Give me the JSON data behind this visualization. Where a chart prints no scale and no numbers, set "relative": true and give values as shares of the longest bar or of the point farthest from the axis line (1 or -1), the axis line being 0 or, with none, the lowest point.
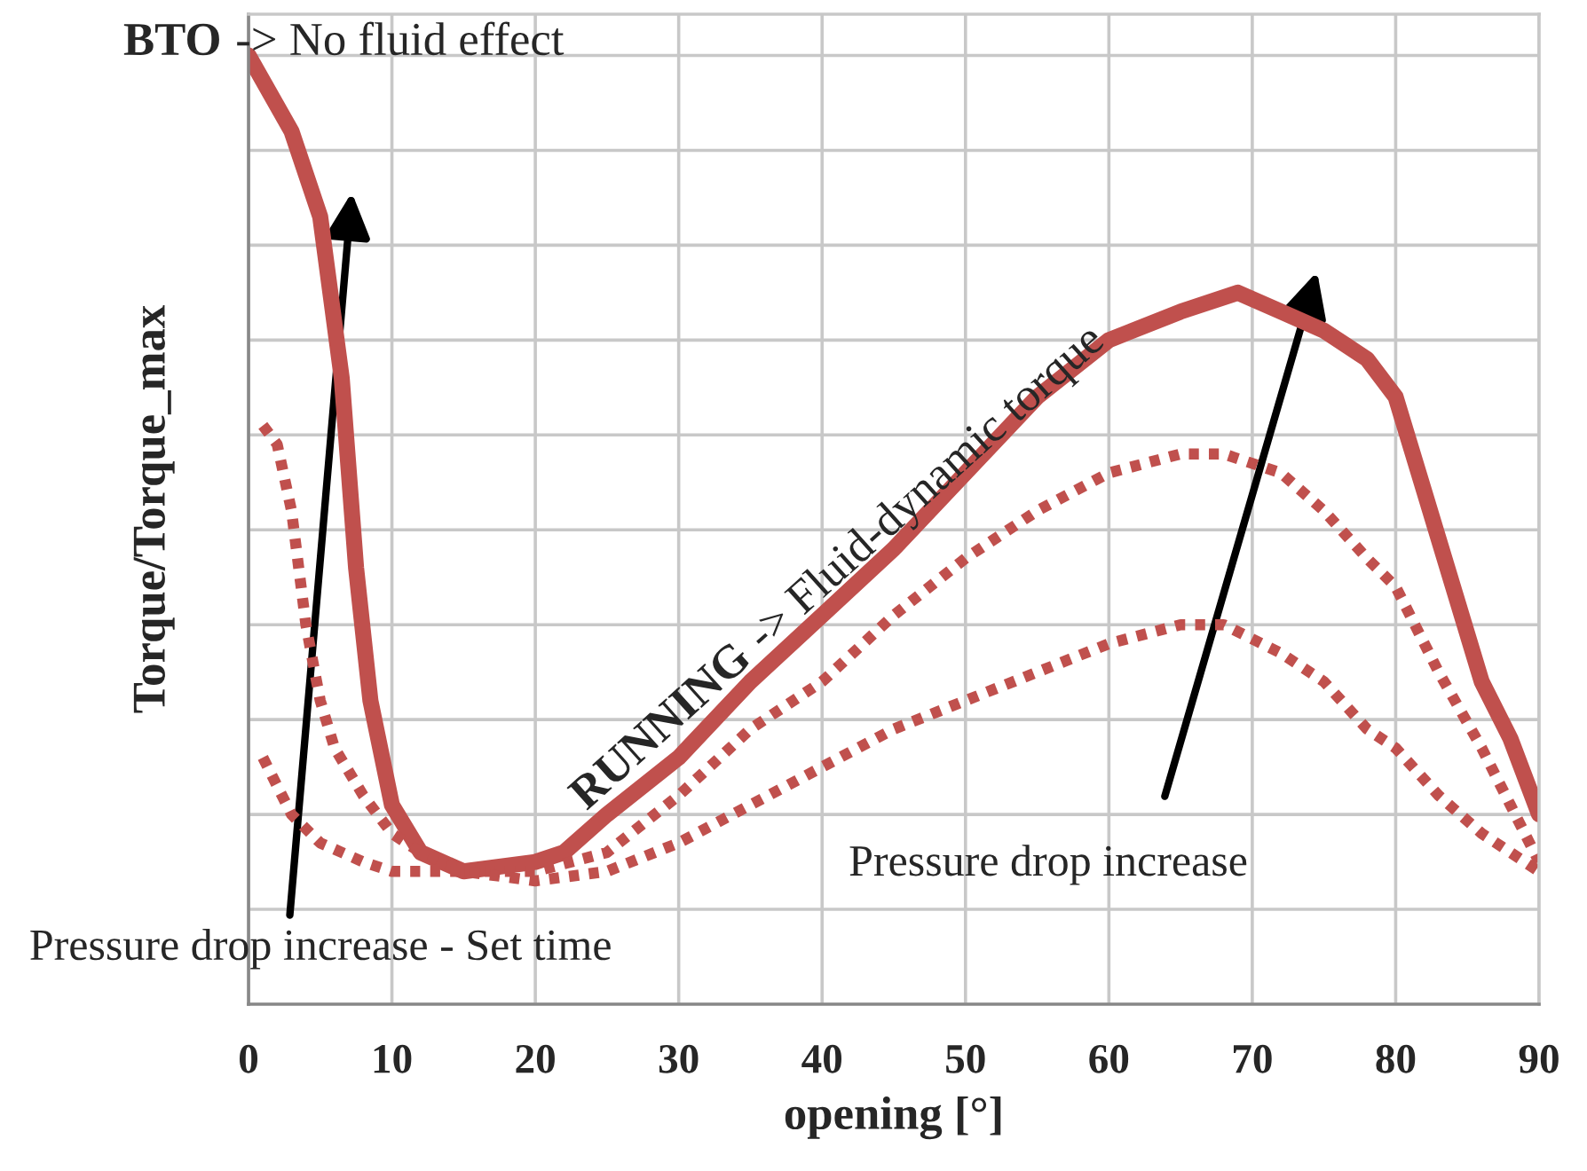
{
  "chart_data": {
    "type": "line",
    "relative": true,
    "xlabel": "opening [°]",
    "ylabel": "Torque/Torque_max",
    "xlim": [
      0,
      90
    ],
    "xticks": [
      0,
      10,
      20,
      30,
      40,
      50,
      60,
      70,
      80,
      90
    ],
    "grid": true,
    "legend": false,
    "annotations": [
      "BTO -> No fluid effect",
      "RUNNING -> Fluid-dynamic torque",
      "Pressure drop increase - Set time",
      "Pressure drop increase"
    ],
    "series": [
      {
        "color": "#c0504d",
        "line_style": "solid",
        "x": [
          0,
          3,
          5,
          6.5,
          7.5,
          8.5,
          10,
          12,
          15,
          20,
          22,
          25,
          30,
          35,
          40,
          45,
          50,
          55,
          60,
          65,
          69,
          72,
          75,
          78,
          80,
          82,
          84,
          86,
          88,
          90
        ],
        "values": [
          1.0,
          0.92,
          0.83,
          0.66,
          0.46,
          0.32,
          0.21,
          0.16,
          0.14,
          0.15,
          0.16,
          0.2,
          0.26,
          0.34,
          0.41,
          0.48,
          0.56,
          0.64,
          0.7,
          0.73,
          0.75,
          0.73,
          0.71,
          0.68,
          0.64,
          0.54,
          0.44,
          0.34,
          0.28,
          0.2
        ]
      },
      {
        "color": "#c0504d",
        "line_style": "dotted",
        "x": [
          1,
          2,
          3,
          4,
          5,
          6,
          8,
          10,
          12,
          15,
          20,
          25,
          30,
          35,
          40,
          45,
          50,
          55,
          60,
          65,
          68,
          72,
          75,
          78,
          80,
          83,
          86,
          88,
          90
        ],
        "values": [
          0.61,
          0.59,
          0.52,
          0.4,
          0.32,
          0.27,
          0.22,
          0.18,
          0.16,
          0.14,
          0.14,
          0.16,
          0.22,
          0.29,
          0.34,
          0.41,
          0.47,
          0.52,
          0.56,
          0.58,
          0.58,
          0.56,
          0.52,
          0.47,
          0.44,
          0.35,
          0.27,
          0.21,
          0.15
        ]
      },
      {
        "color": "#c0504d",
        "line_style": "dotted",
        "x": [
          1,
          2,
          3,
          5,
          8,
          10,
          15,
          20,
          25,
          30,
          35,
          40,
          45,
          50,
          55,
          60,
          65,
          68,
          72,
          75,
          78,
          80,
          83,
          86,
          90
        ],
        "values": [
          0.26,
          0.23,
          0.2,
          0.17,
          0.15,
          0.14,
          0.14,
          0.13,
          0.14,
          0.17,
          0.21,
          0.25,
          0.29,
          0.32,
          0.35,
          0.38,
          0.4,
          0.4,
          0.37,
          0.34,
          0.29,
          0.27,
          0.22,
          0.18,
          0.14
        ]
      }
    ]
  }
}
